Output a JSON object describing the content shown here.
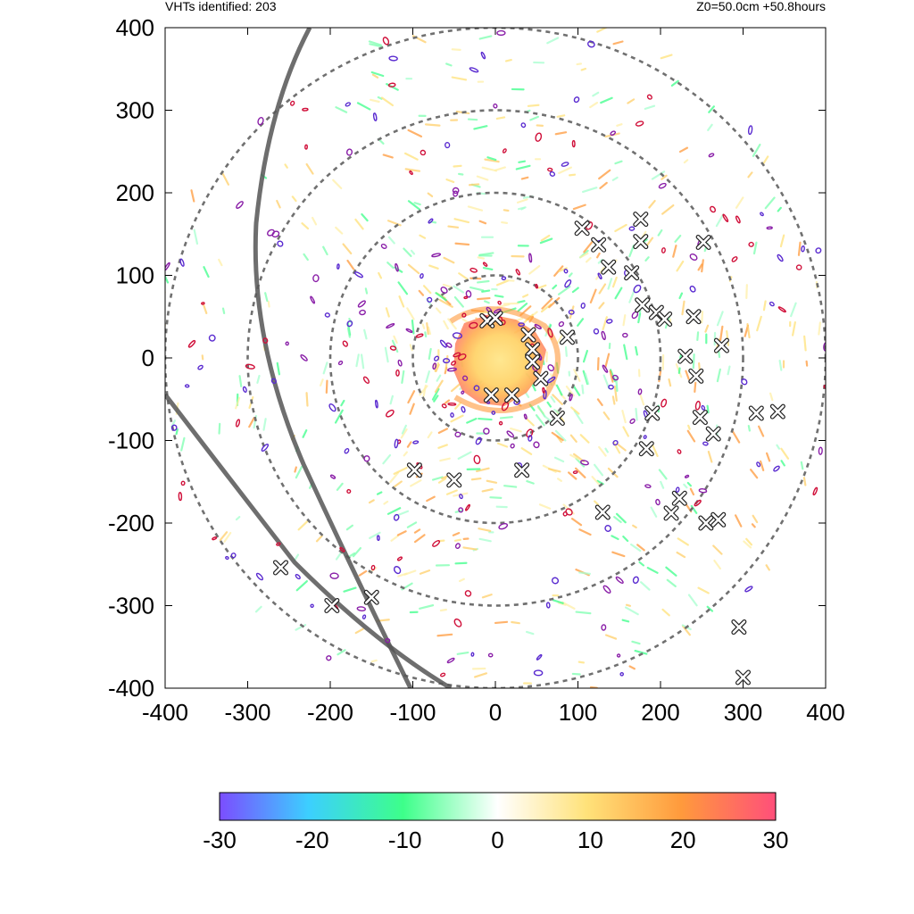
{
  "header": {
    "left_text": "VHTs identified: 203",
    "right_text": "Z0=50.0cm  +50.8hours"
  },
  "chart_data": {
    "type": "heatmap",
    "xlim": [
      -400,
      400
    ],
    "ylim": [
      -400,
      400
    ],
    "x_ticks": [
      "-400",
      "-300",
      "-200",
      "-100",
      "0",
      "100",
      "200",
      "300",
      "400"
    ],
    "y_ticks": [
      "400",
      "300",
      "200",
      "100",
      "0",
      "-100",
      "-200",
      "-300",
      "-400"
    ],
    "grid": false,
    "range_rings_radius": [
      100,
      200,
      300,
      400
    ],
    "colorbar": {
      "min": -30,
      "max": 30,
      "tick_labels": [
        "-30",
        "-20",
        "-10",
        "0",
        "10",
        "20",
        "30"
      ],
      "colors": [
        "#7b4dff",
        "#3ccfff",
        "#3dff8a",
        "#ffffff",
        "#ffe27a",
        "#ff9a3c",
        "#ff4f7a"
      ]
    },
    "vht_markers": [
      [
        -10,
        45
      ],
      [
        0,
        48
      ],
      [
        40,
        28
      ],
      [
        45,
        10
      ],
      [
        45,
        -5
      ],
      [
        87,
        25
      ],
      [
        55,
        -25
      ],
      [
        -5,
        -45
      ],
      [
        20,
        -45
      ],
      [
        75,
        -73
      ],
      [
        -98,
        -136
      ],
      [
        -50,
        -148
      ],
      [
        32,
        -136
      ],
      [
        105,
        157
      ],
      [
        125,
        137
      ],
      [
        137,
        110
      ],
      [
        176,
        168
      ],
      [
        176,
        141
      ],
      [
        165,
        103
      ],
      [
        178,
        64
      ],
      [
        195,
        55
      ],
      [
        205,
        47
      ],
      [
        240,
        50
      ],
      [
        252,
        140
      ],
      [
        274,
        15
      ],
      [
        230,
        2
      ],
      [
        243,
        -22
      ],
      [
        190,
        -67
      ],
      [
        183,
        -110
      ],
      [
        248,
        -72
      ],
      [
        264,
        -92
      ],
      [
        316,
        -67
      ],
      [
        342,
        -65
      ],
      [
        130,
        -187
      ],
      [
        223,
        -170
      ],
      [
        213,
        -188
      ],
      [
        255,
        -200
      ],
      [
        270,
        -196
      ],
      [
        -260,
        -254
      ],
      [
        -198,
        -300
      ],
      [
        -150,
        -290
      ],
      [
        295,
        -326
      ],
      [
        300,
        -387
      ]
    ],
    "vht_count": 203,
    "height_label": "Z0=50.0cm",
    "time_label": "+50.8hours"
  }
}
